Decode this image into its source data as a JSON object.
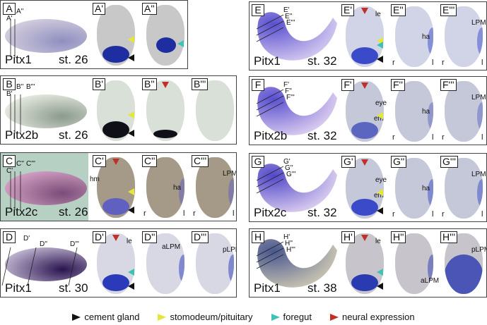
{
  "panels": [
    {
      "id": "A",
      "gene": "Pitx1",
      "stage": "st. 26",
      "planes": [
        "A'",
        "A''"
      ],
      "sections": [
        {
          "label": "A'",
          "annotations": [],
          "arrows": [
            "yellow",
            "black"
          ],
          "sides": []
        },
        {
          "label": "A''",
          "annotations": [],
          "arrows": [
            "cyan"
          ],
          "sides": []
        }
      ]
    },
    {
      "id": "B",
      "gene": "Pitx2b",
      "stage": "st. 26",
      "planes": [
        "B'",
        "B''",
        "B'''"
      ],
      "sections": [
        {
          "label": "B'",
          "annotations": [],
          "arrows": [
            "yellow",
            "black"
          ],
          "sides": []
        },
        {
          "label": "B''",
          "annotations": [],
          "arrows": [
            "red"
          ],
          "sides": []
        },
        {
          "label": "B'''",
          "annotations": [],
          "arrows": [],
          "sides": []
        }
      ]
    },
    {
      "id": "C",
      "gene": "Pitx2c",
      "stage": "st. 26",
      "planes": [
        "C'",
        "C''",
        "C'''"
      ],
      "sections": [
        {
          "label": "C'",
          "annotations": [
            "hm"
          ],
          "arrows": [
            "red",
            "yellow",
            "black"
          ],
          "sides": []
        },
        {
          "label": "C''",
          "annotations": [
            "ha"
          ],
          "arrows": [],
          "sides": [
            "r",
            "l"
          ]
        },
        {
          "label": "C'''",
          "annotations": [
            "LPM"
          ],
          "arrows": [],
          "sides": [
            "r",
            "l"
          ]
        }
      ]
    },
    {
      "id": "D",
      "gene": "Pitx1",
      "stage": "st. 30",
      "planes": [
        "D'",
        "D''",
        "D'''"
      ],
      "sections": [
        {
          "label": "D'",
          "annotations": [
            "le"
          ],
          "arrows": [
            "red",
            "cyan",
            "black"
          ],
          "sides": []
        },
        {
          "label": "D''",
          "annotations": [
            "aLPM"
          ],
          "arrows": [],
          "sides": []
        },
        {
          "label": "D'''",
          "annotations": [
            "pLPM"
          ],
          "arrows": [],
          "sides": []
        }
      ]
    },
    {
      "id": "E",
      "gene": "Pitx1",
      "stage": "st. 32",
      "planes": [
        "E'",
        "E''",
        "E'''"
      ],
      "sections": [
        {
          "label": "E'",
          "annotations": [
            "le"
          ],
          "arrows": [
            "red",
            "yellow",
            "cyan",
            "black"
          ],
          "sides": []
        },
        {
          "label": "E''",
          "annotations": [
            "ha"
          ],
          "arrows": [],
          "sides": [
            "r",
            "l"
          ]
        },
        {
          "label": "E'''",
          "annotations": [
            "LPM"
          ],
          "arrows": [],
          "sides": [
            "r",
            "l"
          ]
        }
      ]
    },
    {
      "id": "F",
      "gene": "Pitx2b",
      "stage": "st. 32",
      "planes": [
        "F'",
        "F''",
        "F'''"
      ],
      "sections": [
        {
          "label": "F'",
          "annotations": [
            "eye",
            "em"
          ],
          "arrows": [
            "red",
            "yellow"
          ],
          "sides": []
        },
        {
          "label": "F''",
          "annotations": [
            "ha"
          ],
          "arrows": [],
          "sides": [
            "r",
            "l"
          ]
        },
        {
          "label": "F'''",
          "annotations": [
            "LPM"
          ],
          "arrows": [],
          "sides": [
            "r",
            "l"
          ]
        }
      ]
    },
    {
      "id": "G",
      "gene": "Pitx2c",
      "stage": "st. 32",
      "planes": [
        "G'",
        "G''",
        "G'''"
      ],
      "sections": [
        {
          "label": "G'",
          "annotations": [
            "eye",
            "em"
          ],
          "arrows": [
            "red",
            "yellow",
            "black"
          ],
          "sides": []
        },
        {
          "label": "G''",
          "annotations": [
            "ha"
          ],
          "arrows": [],
          "sides": [
            "r",
            "l"
          ]
        },
        {
          "label": "G'''",
          "annotations": [
            "LPM"
          ],
          "arrows": [],
          "sides": [
            "r",
            "l"
          ]
        }
      ]
    },
    {
      "id": "H",
      "gene": "Pitx1",
      "stage": "st. 38",
      "planes": [
        "H'",
        "H''",
        "H'''"
      ],
      "sections": [
        {
          "label": "H'",
          "annotations": [
            "le"
          ],
          "arrows": [
            "red",
            "cyan",
            "black"
          ],
          "sides": []
        },
        {
          "label": "H''",
          "annotations": [
            "aLPM"
          ],
          "arrows": [],
          "sides": []
        },
        {
          "label": "H'''",
          "annotations": [
            "pLPM"
          ],
          "arrows": [],
          "sides": []
        }
      ]
    }
  ],
  "legend": [
    {
      "label": "cement gland",
      "color": "#111111"
    },
    {
      "label": "stomodeum/pituitary",
      "color": "#e6e63a"
    },
    {
      "label": "foregut",
      "color": "#3fc2b4"
    },
    {
      "label": "neural expression",
      "color": "#c03028"
    }
  ]
}
